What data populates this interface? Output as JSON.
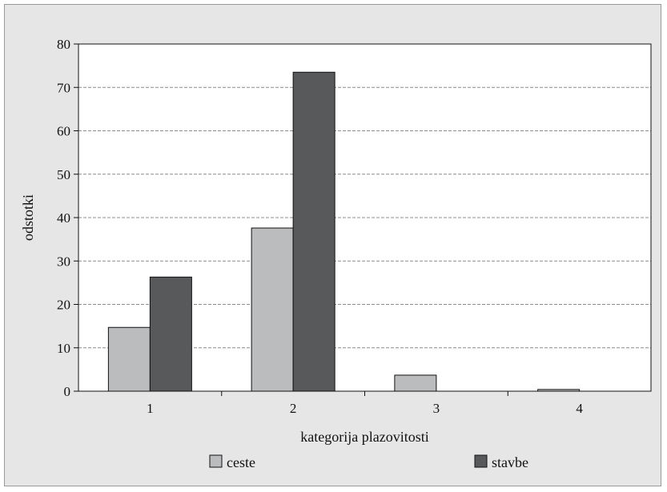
{
  "chart_data": {
    "type": "bar",
    "categories": [
      "1",
      "2",
      "3",
      "4"
    ],
    "series": [
      {
        "name": "ceste",
        "values": [
          14.7,
          37.6,
          3.7,
          0.4
        ],
        "color": "#bbbcbe"
      },
      {
        "name": "stavbe",
        "values": [
          26.3,
          73.5,
          0,
          0
        ],
        "color": "#58595b"
      }
    ],
    "xlabel": "kategorija plazovitosti",
    "ylabel": "odstotki",
    "ylim": [
      0,
      80
    ],
    "yticks": [
      "0",
      "10",
      "20",
      "30",
      "40",
      "50",
      "60",
      "70",
      "80"
    ],
    "grid": true,
    "legend_position": "bottom"
  }
}
